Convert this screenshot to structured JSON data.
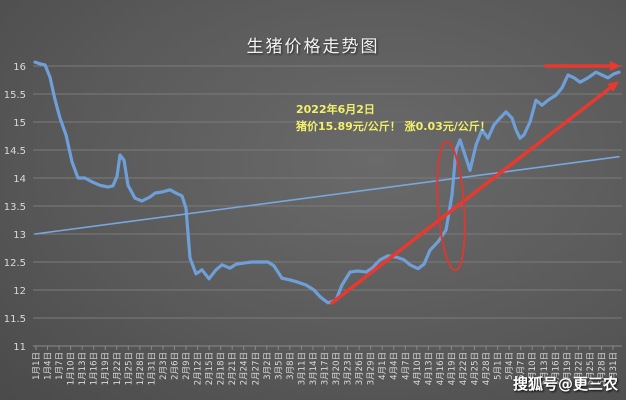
{
  "chart_data": {
    "type": "line",
    "title": "生猪价格走势图",
    "xlabel": "",
    "ylabel": "",
    "ylim": [
      11,
      16
    ],
    "yticks": [
      11,
      11.5,
      12,
      12.5,
      13,
      13.5,
      14,
      14.5,
      15,
      15.5,
      16
    ],
    "grid": true,
    "legend": null,
    "categories": [
      "1月1日",
      "1月4日",
      "1月7日",
      "1月10日",
      "1月13日",
      "1月16日",
      "1月19日",
      "1月22日",
      "1月25日",
      "1月28日",
      "1月31日",
      "2月3日",
      "2月6日",
      "2月9日",
      "2月12日",
      "2月15日",
      "2月18日",
      "2月21日",
      "2月24日",
      "2月27日",
      "3月2日",
      "3月5日",
      "3月8日",
      "3月11日",
      "3月14日",
      "3月17日",
      "3月20日",
      "3月23日",
      "3月26日",
      "3月29日",
      "4月1日",
      "4月4日",
      "4月7日",
      "4月10日",
      "4月13日",
      "4月16日",
      "4月19日",
      "4月22日",
      "4月25日",
      "4月28日",
      "5月1日",
      "5月4日",
      "5月7日",
      "5月10日",
      "5月13日",
      "5月16日",
      "5月19日",
      "5月22日",
      "5月25日",
      "5月28日",
      "5月31日"
    ],
    "series": [
      {
        "name": "生猪价格",
        "color": "#6f9fd8",
        "points": [
          [
            35,
            16.07
          ],
          [
            40,
            16.04
          ],
          [
            45,
            16.02
          ],
          [
            50,
            15.8
          ],
          [
            55,
            15.4
          ],
          [
            60,
            15.07
          ],
          [
            66,
            14.77
          ],
          [
            72,
            14.29
          ],
          [
            78,
            14.0
          ],
          [
            85,
            14.0
          ],
          [
            92,
            13.93
          ],
          [
            100,
            13.87
          ],
          [
            108,
            13.84
          ],
          [
            113,
            13.86
          ],
          [
            117,
            14.03
          ],
          [
            120,
            14.41
          ],
          [
            124,
            14.32
          ],
          [
            128,
            13.87
          ],
          [
            135,
            13.64
          ],
          [
            142,
            13.59
          ],
          [
            150,
            13.66
          ],
          [
            155,
            13.73
          ],
          [
            162,
            13.75
          ],
          [
            170,
            13.79
          ],
          [
            176,
            13.73
          ],
          [
            182,
            13.68
          ],
          [
            186,
            13.46
          ],
          [
            190,
            12.57
          ],
          [
            196,
            12.29
          ],
          [
            202,
            12.36
          ],
          [
            209,
            12.2
          ],
          [
            216,
            12.36
          ],
          [
            222,
            12.45
          ],
          [
            230,
            12.39
          ],
          [
            236,
            12.46
          ],
          [
            244,
            12.48
          ],
          [
            252,
            12.5
          ],
          [
            260,
            12.5
          ],
          [
            268,
            12.5
          ],
          [
            274,
            12.43
          ],
          [
            282,
            12.21
          ],
          [
            290,
            12.18
          ],
          [
            298,
            12.14
          ],
          [
            306,
            12.09
          ],
          [
            314,
            12.0
          ],
          [
            320,
            11.88
          ],
          [
            328,
            11.77
          ],
          [
            336,
            11.82
          ],
          [
            342,
            12.09
          ],
          [
            350,
            12.32
          ],
          [
            358,
            12.34
          ],
          [
            366,
            12.32
          ],
          [
            372,
            12.39
          ],
          [
            380,
            12.54
          ],
          [
            388,
            12.61
          ],
          [
            396,
            12.59
          ],
          [
            404,
            12.54
          ],
          [
            410,
            12.45
          ],
          [
            418,
            12.38
          ],
          [
            424,
            12.46
          ],
          [
            430,
            12.71
          ],
          [
            438,
            12.86
          ],
          [
            446,
            13.07
          ],
          [
            452,
            13.7
          ],
          [
            456,
            14.5
          ],
          [
            460,
            14.68
          ],
          [
            465,
            14.41
          ],
          [
            470,
            14.14
          ],
          [
            476,
            14.59
          ],
          [
            482,
            14.86
          ],
          [
            488,
            14.71
          ],
          [
            494,
            14.95
          ],
          [
            500,
            15.07
          ],
          [
            506,
            15.18
          ],
          [
            512,
            15.07
          ],
          [
            516,
            14.86
          ],
          [
            520,
            14.71
          ],
          [
            524,
            14.77
          ],
          [
            530,
            15.0
          ],
          [
            536,
            15.39
          ],
          [
            542,
            15.3
          ],
          [
            548,
            15.39
          ],
          [
            556,
            15.48
          ],
          [
            562,
            15.61
          ],
          [
            568,
            15.84
          ],
          [
            574,
            15.79
          ],
          [
            580,
            15.71
          ],
          [
            588,
            15.79
          ],
          [
            596,
            15.89
          ],
          [
            602,
            15.84
          ],
          [
            608,
            15.79
          ],
          [
            614,
            15.86
          ],
          [
            619,
            15.89
          ]
        ]
      },
      {
        "name": "线性趋势线",
        "color": "#7aa6de",
        "points": [
          [
            35,
            13.0
          ],
          [
            619,
            14.38
          ]
        ]
      }
    ],
    "annotations": [
      {
        "type": "text",
        "lines": [
          "2022年6月2日",
          "猪价15.89元/公斤！ 涨0.03元/公斤！"
        ],
        "color": "#f3f06a"
      },
      {
        "type": "arrow",
        "color": "#e8392f",
        "from": [
          332,
          11.77
        ],
        "to": [
          619,
          15.73
        ]
      },
      {
        "type": "arrow",
        "color": "#e8392f",
        "from": [
          546,
          16.0
        ],
        "to": [
          621,
          16.0
        ]
      },
      {
        "type": "ellipse",
        "color": "#d63a33",
        "center": [
          451,
          13.5
        ],
        "rx": 13,
        "ry": 1.15
      }
    ]
  },
  "watermark": "搜狐号@更三农"
}
